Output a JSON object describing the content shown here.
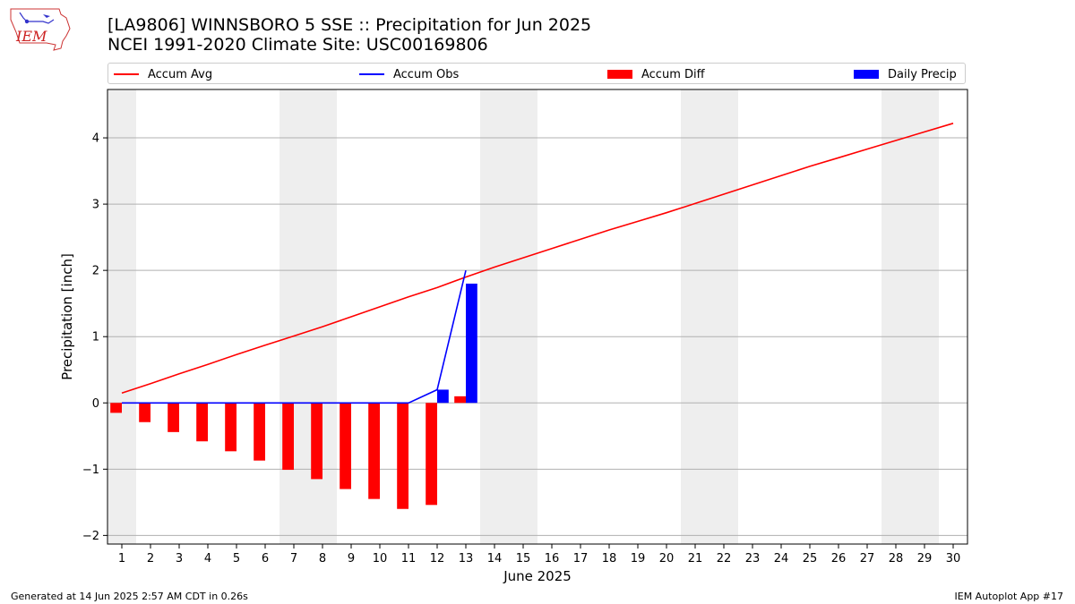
{
  "title_line1": "[LA9806] WINNSBORO 5 SSE :: Precipitation for Jun 2025",
  "title_line2": "NCEI 1991-2020 Climate Site: USC00169806",
  "logo_text": "IEM",
  "footer_left": "Generated at 14 Jun 2025 2:57 AM CDT in 0.26s",
  "footer_right": "IEM Autoplot App #17",
  "colors": {
    "avg": "#ff0000",
    "obs": "#0000ff",
    "diff": "#ff0000",
    "daily": "#0000ff",
    "weekend": "#eeeeee",
    "grid": "#b0b0b0"
  },
  "chart_data": {
    "type": "bar",
    "xlabel": "June 2025",
    "ylabel": "Precipitation [inch]",
    "xlim": [
      0.5,
      30.5
    ],
    "ylim": [
      -2.13,
      4.73
    ],
    "yticks": [
      -2,
      -1,
      0,
      1,
      2,
      3,
      4
    ],
    "grid": "horizontal",
    "legend_position": "top",
    "days": [
      1,
      2,
      3,
      4,
      5,
      6,
      7,
      8,
      9,
      10,
      11,
      12,
      13,
      14,
      15,
      16,
      17,
      18,
      19,
      20,
      21,
      22,
      23,
      24,
      25,
      26,
      27,
      28,
      29,
      30
    ],
    "weekend_days": [
      1,
      7,
      8,
      14,
      15,
      21,
      22,
      28,
      29
    ],
    "series": [
      {
        "name": "Accum Avg",
        "kind": "line",
        "x": [
          1,
          2,
          3,
          4,
          5,
          6,
          7,
          8,
          9,
          10,
          11,
          12,
          13,
          14,
          15,
          16,
          17,
          18,
          19,
          20,
          21,
          22,
          23,
          24,
          25,
          26,
          27,
          28,
          29,
          30
        ],
        "values": [
          0.15,
          0.29,
          0.44,
          0.58,
          0.73,
          0.87,
          1.01,
          1.15,
          1.3,
          1.45,
          1.6,
          1.74,
          1.9,
          2.05,
          2.19,
          2.33,
          2.47,
          2.61,
          2.74,
          2.87,
          3.01,
          3.15,
          3.29,
          3.43,
          3.57,
          3.7,
          3.83,
          3.96,
          4.09,
          4.22
        ]
      },
      {
        "name": "Accum Obs",
        "kind": "line",
        "x": [
          1,
          2,
          3,
          4,
          5,
          6,
          7,
          8,
          9,
          10,
          11,
          12,
          13
        ],
        "values": [
          0,
          0,
          0,
          0,
          0,
          0,
          0,
          0,
          0,
          0,
          0,
          0.2,
          2.0
        ]
      },
      {
        "name": "Accum Diff",
        "kind": "bar",
        "x": [
          1,
          2,
          3,
          4,
          5,
          6,
          7,
          8,
          9,
          10,
          11,
          12,
          13
        ],
        "values": [
          -0.15,
          -0.29,
          -0.44,
          -0.58,
          -0.73,
          -0.87,
          -1.01,
          -1.15,
          -1.3,
          -1.45,
          -1.6,
          -1.54,
          0.1
        ]
      },
      {
        "name": "Daily Precip",
        "kind": "bar",
        "x": [
          12,
          13
        ],
        "values": [
          0.2,
          1.8
        ]
      }
    ]
  }
}
